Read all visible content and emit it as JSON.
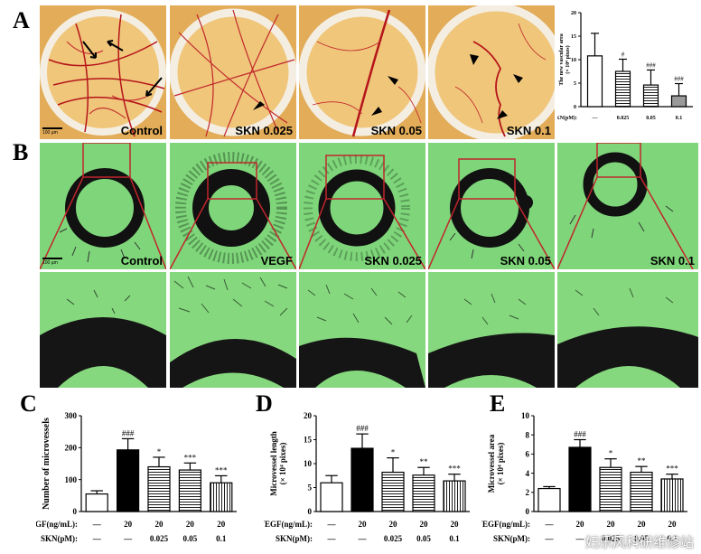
{
  "panels": {
    "A": {
      "letter": "A",
      "photos": [
        "Control",
        "SKN 0.025",
        "SKN 0.05",
        "SKN 0.1"
      ],
      "scale_text": "100 µm"
    },
    "B": {
      "letter": "B",
      "photos": [
        "Control",
        "VEGF",
        "SKN 0.025",
        "SKN 0.05",
        "SKN 0.1"
      ],
      "scale_text": "100 µm"
    },
    "C": {
      "letter": "C"
    },
    "D": {
      "letter": "D"
    },
    "E": {
      "letter": "E"
    }
  },
  "watermark": "妇乐风科研维修站",
  "colors": {
    "membrane": "#e9b860",
    "vessel": "#b5141a",
    "culture_green": "#7fd67a",
    "zoom_box": "#c0262c"
  },
  "chart_data": [
    {
      "id": "A",
      "type": "bar",
      "ylabel": "The new vascular area",
      "ylabel2": "(× 10⁴ pixes)",
      "ylim": [
        0,
        20
      ],
      "yticks": [
        "0",
        "5",
        "10",
        "15",
        "20"
      ],
      "row_labels": [
        {
          "name": "SKN(pM):",
          "values": [
            "—",
            "0.025",
            "0.05",
            "0.1"
          ]
        }
      ],
      "values": [
        10.8,
        7.5,
        4.6,
        2.3
      ],
      "errors": [
        4.8,
        2.6,
        3.2,
        2.6
      ],
      "significance": [
        "",
        "#",
        "###",
        "###"
      ],
      "fills": [
        "white",
        "hstripe",
        "hstripe",
        "gray"
      ]
    },
    {
      "id": "C",
      "type": "bar",
      "ylabel": "Number of microvessels",
      "ylim": [
        0,
        300
      ],
      "yticks": [
        "0",
        "100",
        "200",
        "300"
      ],
      "row_labels": [
        {
          "name": "VEGF(ng/mL):",
          "values": [
            "—",
            "20",
            "20",
            "20",
            "20"
          ]
        },
        {
          "name": "SKN(pM):",
          "values": [
            "—",
            "—",
            "0.025",
            "0.05",
            "0.1"
          ]
        }
      ],
      "values": [
        55,
        193,
        140,
        130,
        90
      ],
      "errors": [
        10,
        35,
        30,
        22,
        22
      ],
      "significance": [
        "",
        "###",
        "*",
        "***",
        "***"
      ],
      "fills": [
        "white",
        "black",
        "hstripe",
        "hstripe",
        "vstripe"
      ]
    },
    {
      "id": "D",
      "type": "bar",
      "ylabel": "Microvessel length",
      "ylabel2": "(× 10⁴ pixes)",
      "ylim": [
        0,
        20
      ],
      "yticks": [
        "0",
        "5",
        "10",
        "15",
        "20"
      ],
      "row_labels": [
        {
          "name": "VEGF(ng/mL):",
          "values": [
            "—",
            "20",
            "20",
            "20",
            "20"
          ]
        },
        {
          "name": "SKN(pM):",
          "values": [
            "—",
            "—",
            "0.025",
            "0.05",
            "0.1"
          ]
        }
      ],
      "values": [
        6.0,
        13.2,
        8.2,
        7.6,
        6.4
      ],
      "errors": [
        1.5,
        3.0,
        3.0,
        1.6,
        1.4
      ],
      "significance": [
        "",
        "###",
        "*",
        "**",
        "***"
      ],
      "fills": [
        "white",
        "black",
        "hstripe",
        "hstripe",
        "vstripe"
      ]
    },
    {
      "id": "E",
      "type": "bar",
      "ylabel": "Microvessel area",
      "ylabel2": "(× 10⁴ pixes)",
      "ylim": [
        0,
        10
      ],
      "yticks": [
        "0",
        "2",
        "4",
        "6",
        "8",
        "10"
      ],
      "row_labels": [
        {
          "name": "VEGF(ng/mL):",
          "values": [
            "—",
            "20",
            "20",
            "20",
            "20"
          ]
        },
        {
          "name": "SKN(pM):",
          "values": [
            "—",
            "—",
            "0.025",
            "0.05",
            "0.1"
          ]
        }
      ],
      "values": [
        2.4,
        6.7,
        4.6,
        4.1,
        3.4
      ],
      "errors": [
        0.2,
        0.8,
        0.9,
        0.6,
        0.5
      ],
      "significance": [
        "",
        "###",
        "*",
        "**",
        "***"
      ],
      "fills": [
        "white",
        "black",
        "hstripe",
        "hstripe",
        "vstripe"
      ]
    }
  ]
}
